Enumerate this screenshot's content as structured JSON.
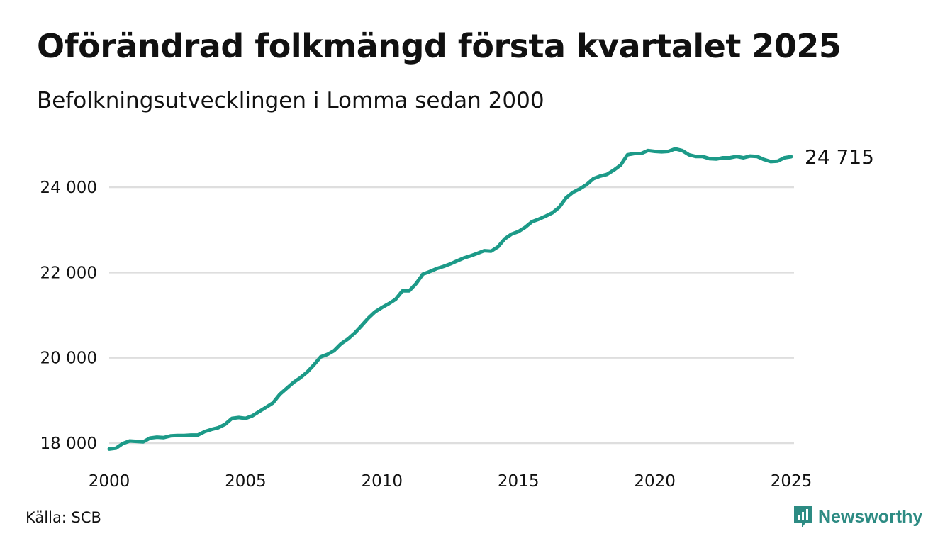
{
  "title": "Oförändrad folkmängd första kvartalet 2025",
  "subtitle": "Befolkningsutvecklingen i Lomma sedan 2000",
  "source": "Källa: SCB",
  "brand": "Newsworthy",
  "colors": {
    "line": "#1c9a88",
    "grid": "#dedede",
    "brand": "#2d8b83"
  },
  "chart_data": {
    "type": "line",
    "x_ticks": [
      2000,
      2005,
      2010,
      2015,
      2020,
      2025
    ],
    "x_tick_labels": [
      "2000",
      "2005",
      "2010",
      "2015",
      "2020",
      "2025"
    ],
    "y_ticks": [
      18000,
      20000,
      22000,
      24000
    ],
    "y_tick_labels": [
      "18 000",
      "20 000",
      "22 000",
      "24 000"
    ],
    "xlim": [
      2000,
      2025
    ],
    "ylim": [
      17800,
      25000
    ],
    "grid": true,
    "end_label": "24 715",
    "series": [
      {
        "x": [
          2000.0,
          2000.25,
          2000.5,
          2000.75,
          2001.0,
          2001.25,
          2001.5,
          2001.75,
          2002.0,
          2002.25,
          2002.5,
          2002.75,
          2003.0,
          2003.25,
          2003.5,
          2003.75,
          2004.0,
          2004.25,
          2004.5,
          2004.75,
          2005.0,
          2005.25,
          2005.5,
          2005.75,
          2006.0,
          2006.25,
          2006.5,
          2006.75,
          2007.0,
          2007.25,
          2007.5,
          2007.75,
          2008.0,
          2008.25,
          2008.5,
          2008.75,
          2009.0,
          2009.25,
          2009.5,
          2009.75,
          2010.0,
          2010.25,
          2010.5,
          2010.75,
          2011.0,
          2011.25,
          2011.5,
          2011.75,
          2012.0,
          2012.25,
          2012.5,
          2012.75,
          2013.0,
          2013.25,
          2013.5,
          2013.75,
          2014.0,
          2014.25,
          2014.5,
          2014.75,
          2015.0,
          2015.25,
          2015.5,
          2015.75,
          2016.0,
          2016.25,
          2016.5,
          2016.75,
          2017.0,
          2017.25,
          2017.5,
          2017.75,
          2018.0,
          2018.25,
          2018.5,
          2018.75,
          2019.0,
          2019.25,
          2019.5,
          2019.75,
          2020.0,
          2020.25,
          2020.5,
          2020.75,
          2021.0,
          2021.25,
          2021.5,
          2021.75,
          2022.0,
          2022.25,
          2022.5,
          2022.75,
          2023.0,
          2023.25,
          2023.5,
          2023.75,
          2024.0,
          2024.25,
          2024.5,
          2024.75,
          2025.0
        ],
        "y": [
          17860,
          17880,
          17990,
          18050,
          18040,
          18030,
          18120,
          18140,
          18130,
          18170,
          18180,
          18180,
          18190,
          18190,
          18270,
          18320,
          18360,
          18440,
          18580,
          18600,
          18580,
          18640,
          18740,
          18840,
          18940,
          19140,
          19280,
          19420,
          19530,
          19660,
          19830,
          20020,
          20080,
          20170,
          20330,
          20440,
          20580,
          20750,
          20930,
          21080,
          21180,
          21270,
          21370,
          21570,
          21570,
          21740,
          21960,
          22020,
          22090,
          22140,
          22200,
          22270,
          22340,
          22390,
          22450,
          22510,
          22500,
          22600,
          22790,
          22900,
          22960,
          23060,
          23190,
          23250,
          23320,
          23400,
          23530,
          23750,
          23880,
          23960,
          24060,
          24200,
          24260,
          24300,
          24400,
          24520,
          24760,
          24790,
          24790,
          24860,
          24840,
          24830,
          24840,
          24900,
          24860,
          24760,
          24720,
          24720,
          24670,
          24660,
          24690,
          24690,
          24720,
          24690,
          24730,
          24720,
          24650,
          24600,
          24610,
          24690,
          24715
        ]
      }
    ]
  }
}
